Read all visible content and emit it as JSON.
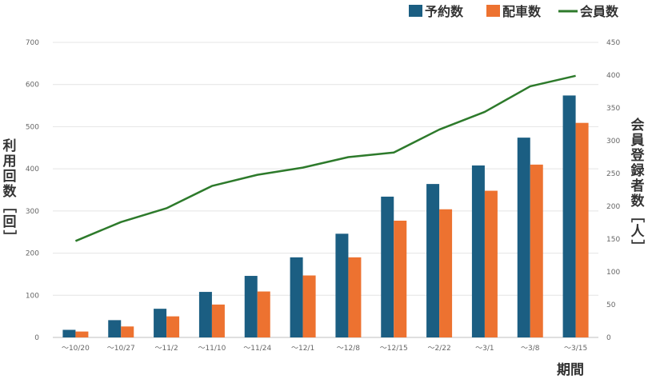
{
  "chart_data": {
    "type": "bar",
    "categories": [
      "～10/20",
      "～10/27",
      "～11/2",
      "～11/10",
      "～11/24",
      "～12/1",
      "～12/8",
      "～12/15",
      "～2/22",
      "～3/1",
      "～3/8",
      "～3/15"
    ],
    "series": [
      {
        "name": "予約数",
        "kind": "bar",
        "axis": "left",
        "color": "#1b5e82",
        "values": [
          18,
          41,
          68,
          108,
          146,
          190,
          246,
          334,
          364,
          408,
          474,
          574
        ]
      },
      {
        "name": "配車数",
        "kind": "bar",
        "axis": "left",
        "color": "#ed7230",
        "values": [
          14,
          26,
          50,
          78,
          109,
          147,
          190,
          277,
          304,
          348,
          410,
          509
        ]
      },
      {
        "name": "会員数",
        "kind": "line",
        "axis": "right",
        "color": "#2d7a2b",
        "values": [
          147,
          176,
          197,
          231,
          248,
          259,
          275,
          282,
          317,
          344,
          383,
          399
        ]
      }
    ],
    "ylabel": "利用回数［回］",
    "ylabel_right": "会員登録者数［人］",
    "xlabel": "期間",
    "ylim": [
      0,
      700
    ],
    "yticks": [
      0,
      100,
      200,
      300,
      400,
      500,
      600,
      700
    ],
    "ylim_right": [
      0,
      450
    ],
    "yticks_right": [
      0,
      50,
      100,
      150,
      200,
      250,
      300,
      350,
      400,
      450
    ],
    "legend": "top-right",
    "grid": true
  }
}
